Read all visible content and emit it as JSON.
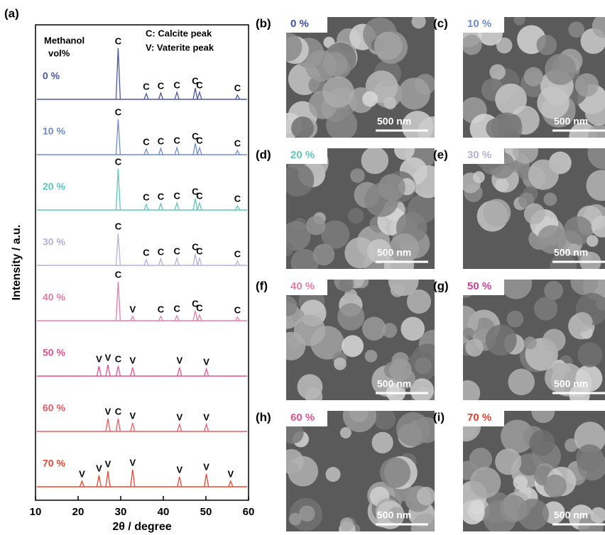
{
  "chart_data": {
    "type": "line",
    "panel_label": "(a)",
    "series_title_lines": [
      "Methanol",
      "vol%"
    ],
    "annotations": [
      "C: Calcite peak",
      "V: Vaterite peak"
    ],
    "xlabel": "2θ / degree",
    "ylabel": "Intensity / a.u.",
    "xlim": [
      10,
      60
    ],
    "xticks": [
      10,
      20,
      30,
      40,
      50,
      60
    ],
    "series": [
      {
        "name": "0 %",
        "color": "#4a56a6",
        "peaks": [
          {
            "x": 29.4,
            "height": 72,
            "label": "C"
          },
          {
            "x": 36.0,
            "height": 8,
            "label": "C"
          },
          {
            "x": 39.4,
            "height": 9,
            "label": "C"
          },
          {
            "x": 43.2,
            "height": 10,
            "label": "C"
          },
          {
            "x": 47.5,
            "height": 16,
            "label": "C"
          },
          {
            "x": 48.5,
            "height": 10,
            "label": "C"
          },
          {
            "x": 57.4,
            "height": 6,
            "label": "C"
          }
        ]
      },
      {
        "name": "10 %",
        "color": "#6f8bd2",
        "peaks": [
          {
            "x": 29.4,
            "height": 50,
            "label": "C"
          },
          {
            "x": 36.0,
            "height": 8,
            "label": "C"
          },
          {
            "x": 39.4,
            "height": 9,
            "label": "C"
          },
          {
            "x": 43.2,
            "height": 10,
            "label": "C"
          },
          {
            "x": 47.5,
            "height": 16,
            "label": "C"
          },
          {
            "x": 48.5,
            "height": 10,
            "label": "C"
          },
          {
            "x": 57.4,
            "height": 6,
            "label": "C"
          }
        ]
      },
      {
        "name": "20 %",
        "color": "#5dc6be",
        "peaks": [
          {
            "x": 29.4,
            "height": 58,
            "label": "C"
          },
          {
            "x": 36.0,
            "height": 8,
            "label": "C"
          },
          {
            "x": 39.4,
            "height": 9,
            "label": "C"
          },
          {
            "x": 43.2,
            "height": 10,
            "label": "C"
          },
          {
            "x": 47.5,
            "height": 16,
            "label": "C"
          },
          {
            "x": 48.5,
            "height": 10,
            "label": "C"
          },
          {
            "x": 57.4,
            "height": 6,
            "label": "C"
          }
        ]
      },
      {
        "name": "30 %",
        "color": "#b3b1dc",
        "peaks": [
          {
            "x": 29.4,
            "height": 45,
            "label": "C"
          },
          {
            "x": 36.0,
            "height": 8,
            "label": "C"
          },
          {
            "x": 39.4,
            "height": 9,
            "label": "C"
          },
          {
            "x": 43.2,
            "height": 10,
            "label": "C"
          },
          {
            "x": 47.5,
            "height": 16,
            "label": "C"
          },
          {
            "x": 48.5,
            "height": 10,
            "label": "C"
          },
          {
            "x": 57.4,
            "height": 6,
            "label": "C"
          }
        ]
      },
      {
        "name": "40 %",
        "color": "#e67ca8",
        "peaks": [
          {
            "x": 29.4,
            "height": 55,
            "label": "C"
          },
          {
            "x": 32.8,
            "height": 6,
            "label": "V"
          },
          {
            "x": 39.4,
            "height": 6,
            "label": "C"
          },
          {
            "x": 43.2,
            "height": 7,
            "label": "C"
          },
          {
            "x": 47.5,
            "height": 14,
            "label": "C"
          },
          {
            "x": 48.5,
            "height": 8,
            "label": "C"
          },
          {
            "x": 57.4,
            "height": 5,
            "label": "C"
          }
        ]
      },
      {
        "name": "50 %",
        "color": "#e9508a",
        "peaks": [
          {
            "x": 24.9,
            "height": 14,
            "label": "V"
          },
          {
            "x": 27.0,
            "height": 16,
            "label": "V"
          },
          {
            "x": 29.4,
            "height": 14,
            "label": "C"
          },
          {
            "x": 32.8,
            "height": 12,
            "label": "V"
          },
          {
            "x": 43.8,
            "height": 12,
            "label": "V"
          },
          {
            "x": 50.1,
            "height": 10,
            "label": "V"
          }
        ]
      },
      {
        "name": "60 %",
        "color": "#ee5a66",
        "peaks": [
          {
            "x": 27.0,
            "height": 18,
            "label": "V"
          },
          {
            "x": 29.4,
            "height": 18,
            "label": "C"
          },
          {
            "x": 32.8,
            "height": 12,
            "label": "V"
          },
          {
            "x": 43.8,
            "height": 10,
            "label": "V"
          },
          {
            "x": 50.1,
            "height": 10,
            "label": "V"
          }
        ]
      },
      {
        "name": "70 %",
        "color": "#ee4530",
        "peaks": [
          {
            "x": 20.9,
            "height": 8,
            "label": "V"
          },
          {
            "x": 24.9,
            "height": 16,
            "label": "V"
          },
          {
            "x": 27.0,
            "height": 22,
            "label": "V"
          },
          {
            "x": 32.8,
            "height": 24,
            "label": "V"
          },
          {
            "x": 43.8,
            "height": 14,
            "label": "V"
          },
          {
            "x": 50.1,
            "height": 18,
            "label": "V"
          },
          {
            "x": 55.8,
            "height": 8,
            "label": "V"
          }
        ]
      }
    ]
  },
  "sem_panels": [
    {
      "label": "(b)",
      "caption": "0 %",
      "color": "#3d4fa8",
      "scale_bar": "500 nm"
    },
    {
      "label": "(c)",
      "caption": "10 %",
      "color": "#6f8bd2",
      "scale_bar": "500 nm"
    },
    {
      "label": "(d)",
      "caption": "20 %",
      "color": "#5dc6be",
      "scale_bar": "500 nm"
    },
    {
      "label": "(e)",
      "caption": "30 %",
      "color": "#b3b1dc",
      "scale_bar": "500 nm"
    },
    {
      "label": "(f)",
      "caption": "40 %",
      "color": "#e67ca8",
      "scale_bar": "500 nm"
    },
    {
      "label": "(g)",
      "caption": "50 %",
      "color": "#c8409a",
      "scale_bar": "500 nm"
    },
    {
      "label": "(h)",
      "caption": "60 %",
      "color": "#e9508a",
      "scale_bar": "500 nm"
    },
    {
      "label": "(i)",
      "caption": "70 %",
      "color": "#ee3c2c",
      "scale_bar": "500 nm"
    }
  ]
}
